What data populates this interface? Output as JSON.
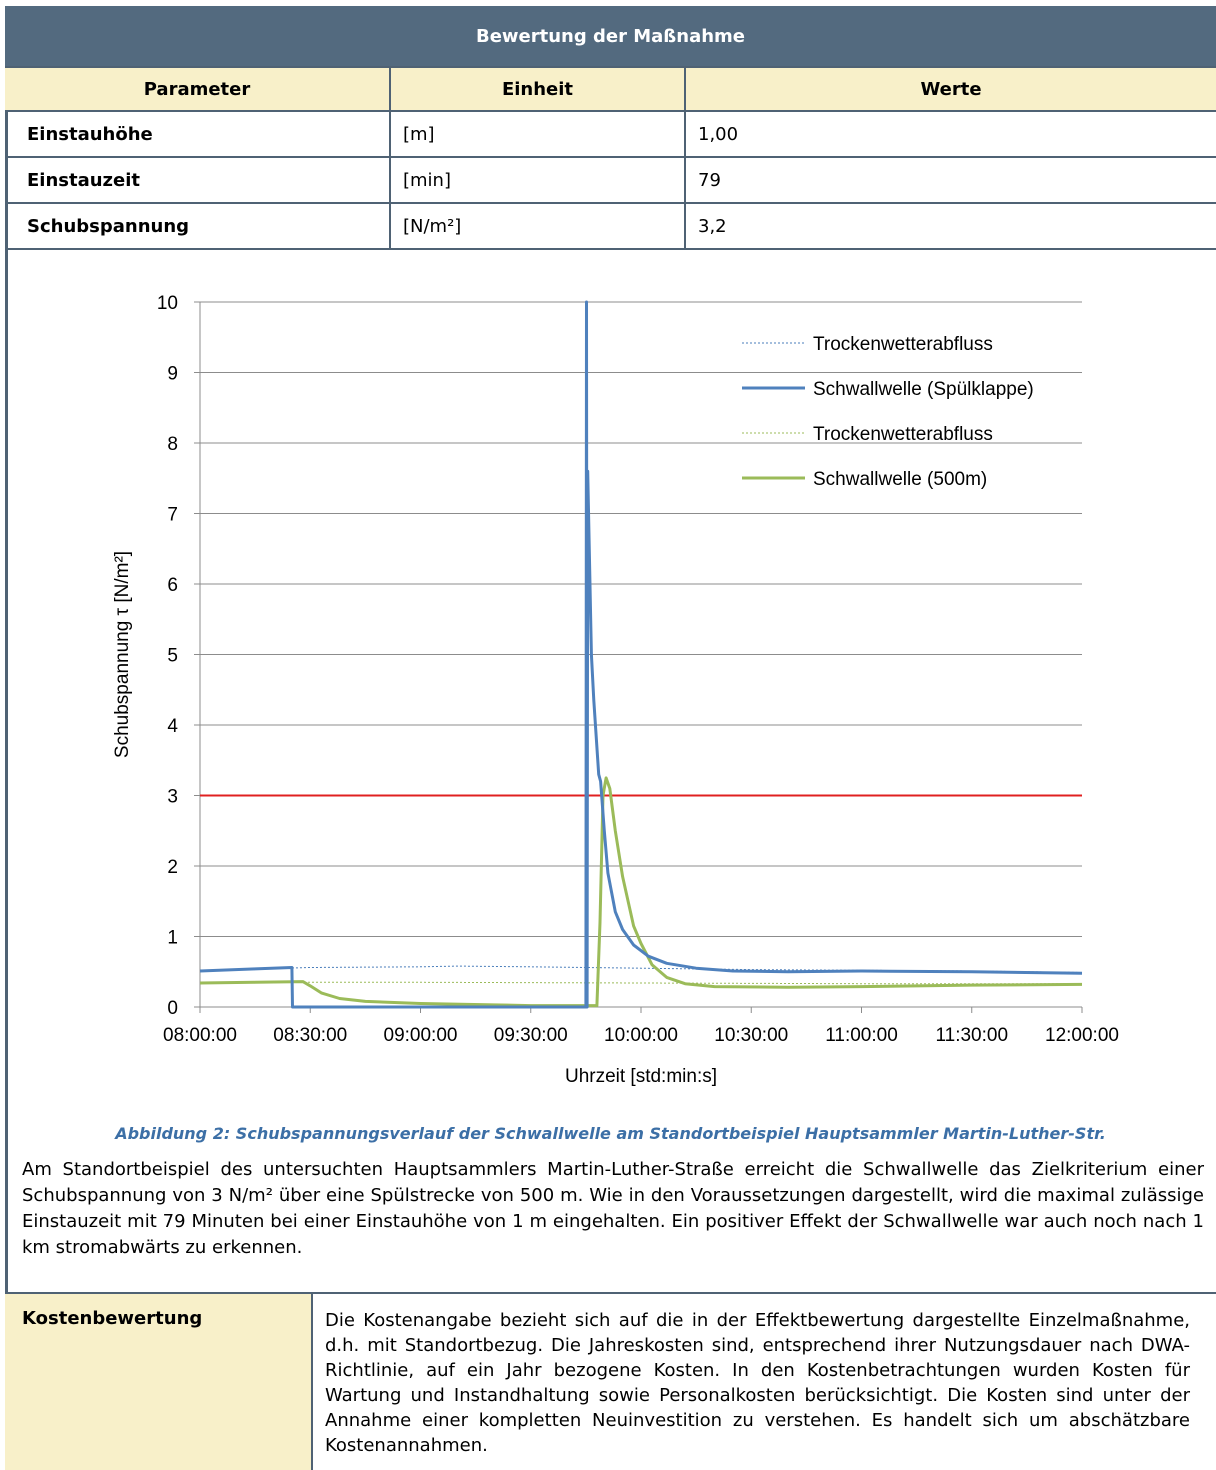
{
  "table": {
    "title": "Bewertung der Maßnahme",
    "headers": [
      "Parameter",
      "Einheit",
      "Werte"
    ],
    "rows": [
      {
        "parameter": "Einstauhöhe",
        "unit": "[m]",
        "value": "1,00"
      },
      {
        "parameter": "Einstauzeit",
        "unit": "[min]",
        "value": "79"
      },
      {
        "parameter": "Schubspannung",
        "unit": "[N/m²]",
        "value": "3,2"
      }
    ]
  },
  "chart_data": {
    "type": "line",
    "xlabel": "Uhrzeit [std:min:s]",
    "ylabel": "Schubspannung τ [N/m²]",
    "x_unit": "time",
    "xlim": [
      "08:00:00",
      "12:00:00"
    ],
    "ylim": [
      0,
      10
    ],
    "x_ticks": [
      "08:00:00",
      "08:30:00",
      "09:00:00",
      "09:30:00",
      "10:00:00",
      "10:30:00",
      "11:00:00",
      "11:30:00",
      "12:00:00"
    ],
    "y_ticks": [
      "0",
      "1",
      "2",
      "3",
      "4",
      "5",
      "6",
      "7",
      "8",
      "9",
      "10"
    ],
    "grid": true,
    "legend_position": "top-right",
    "threshold": {
      "y": 3,
      "color": "#e02020"
    },
    "series": [
      {
        "name": "Trockenwetterabfluss",
        "color": "#4a7ebb",
        "style": "dotted",
        "width": 1,
        "points": [
          [
            "08:00:00",
            0.52
          ],
          [
            "08:30:00",
            0.56
          ],
          [
            "09:00:00",
            0.57
          ],
          [
            "09:10:00",
            0.58
          ],
          [
            "09:30:00",
            0.57
          ],
          [
            "10:00:00",
            0.55
          ],
          [
            "10:30:00",
            0.53
          ],
          [
            "11:00:00",
            0.52
          ],
          [
            "11:30:00",
            0.51
          ],
          [
            "12:00:00",
            0.49
          ]
        ]
      },
      {
        "name": "Schwallwelle (Spülklappe)",
        "color": "#4f81bd",
        "style": "solid",
        "width": 3,
        "points": [
          [
            "08:00:00",
            0.51
          ],
          [
            "08:15:00",
            0.54
          ],
          [
            "08:25:00",
            0.56
          ],
          [
            "08:25:10",
            0.0
          ],
          [
            "09:45:00",
            0.0
          ],
          [
            "09:45:10",
            10.0
          ],
          [
            "09:45:20",
            0.0
          ],
          [
            "09:45:30",
            7.6
          ],
          [
            "09:46:30",
            5.0
          ],
          [
            "09:47:10",
            4.35
          ],
          [
            "09:48:30",
            3.3
          ],
          [
            "09:49:00",
            3.2
          ],
          [
            "09:50:00",
            2.5
          ],
          [
            "09:51:00",
            1.9
          ],
          [
            "09:53:00",
            1.35
          ],
          [
            "09:55:00",
            1.1
          ],
          [
            "09:58:00",
            0.88
          ],
          [
            "10:02:00",
            0.72
          ],
          [
            "10:07:00",
            0.62
          ],
          [
            "10:15:00",
            0.55
          ],
          [
            "10:25:00",
            0.51
          ],
          [
            "10:40:00",
            0.5
          ],
          [
            "11:00:00",
            0.51
          ],
          [
            "11:30:00",
            0.5
          ],
          [
            "12:00:00",
            0.48
          ]
        ]
      },
      {
        "name": "Trockenwetterabfluss",
        "color": "#9bbb59",
        "style": "dotted",
        "width": 1,
        "points": [
          [
            "08:00:00",
            0.35
          ],
          [
            "09:00:00",
            0.35
          ],
          [
            "10:00:00",
            0.34
          ],
          [
            "11:00:00",
            0.33
          ],
          [
            "12:00:00",
            0.33
          ]
        ]
      },
      {
        "name": "Schwallwelle (500m)",
        "color": "#9bbb59",
        "style": "solid",
        "width": 3,
        "points": [
          [
            "08:00:00",
            0.34
          ],
          [
            "08:15:00",
            0.35
          ],
          [
            "08:28:00",
            0.36
          ],
          [
            "08:30:00",
            0.3
          ],
          [
            "08:33:00",
            0.2
          ],
          [
            "08:38:00",
            0.12
          ],
          [
            "08:45:00",
            0.08
          ],
          [
            "09:00:00",
            0.05
          ],
          [
            "09:20:00",
            0.03
          ],
          [
            "09:30:00",
            0.02
          ],
          [
            "09:48:00",
            0.02
          ],
          [
            "09:48:50",
            1.2
          ],
          [
            "09:49:40",
            3.0
          ],
          [
            "09:50:30",
            3.25
          ],
          [
            "09:51:30",
            3.1
          ],
          [
            "09:53:00",
            2.5
          ],
          [
            "09:55:00",
            1.85
          ],
          [
            "09:58:00",
            1.15
          ],
          [
            "10:00:00",
            0.9
          ],
          [
            "10:03:00",
            0.6
          ],
          [
            "10:07:00",
            0.42
          ],
          [
            "10:12:00",
            0.33
          ],
          [
            "10:20:00",
            0.29
          ],
          [
            "10:40:00",
            0.28
          ],
          [
            "11:00:00",
            0.29
          ],
          [
            "11:30:00",
            0.31
          ],
          [
            "12:00:00",
            0.32
          ]
        ]
      }
    ]
  },
  "caption": "Abbildung 2: Schubspannungsverlauf der Schwallwelle am Standortbeispiel Hauptsammler Martin-Luther-Str.",
  "paragraph": "Am Standortbeispiel des untersuchten Hauptsammlers Martin-Luther-Straße erreicht die Schwallwelle das Zielkriterium einer Schubspannung von 3 N/m² über eine Spülstrecke von 500 m. Wie in den Voraussetzungen dargestellt, wird die maximal zulässige Einstauzeit mit 79 Minuten bei einer Einstauhöhe von 1 m eingehalten. Ein positiver Effekt der Schwallwelle war auch noch nach 1 km stromabwärts zu erkennen.",
  "cost": {
    "label": "Kostenbewertung",
    "text": "Die Kostenangabe bezieht sich auf die in der Effektbewertung dargestellte Einzelmaßnahme, d.h. mit Standortbezug. Die Jahreskosten sind, entsprechend ihrer Nutzungsdauer nach DWA-Richtlinie, auf ein Jahr bezogene Kosten. In den Kostenbetrachtungen wurden Kosten für Wartung und Instandhaltung sowie Personalkosten berücksichtigt. Die Kosten sind unter der Annahme einer kompletten Neuinvestition zu verstehen. Es handelt sich um abschätzbare Kostenannahmen."
  }
}
